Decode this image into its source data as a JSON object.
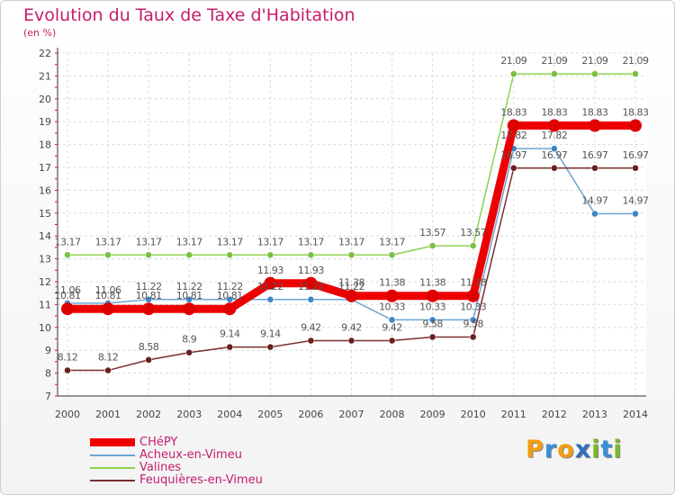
{
  "header": {
    "title": "Evolution du Taux de Taxe d'Habitation",
    "subtitle": "(en %)"
  },
  "logo": {
    "text": "Proxiti",
    "letters": [
      {
        "ch": "P",
        "color": "#f39c12"
      },
      {
        "ch": "r",
        "color": "#3a8fd6"
      },
      {
        "ch": "o",
        "color": "#f39c12"
      },
      {
        "ch": "x",
        "color": "#2f6fbf"
      },
      {
        "ch": "i",
        "color": "#7ab829"
      },
      {
        "ch": "t",
        "color": "#3a8fd6"
      },
      {
        "ch": "i",
        "color": "#7ab829"
      }
    ]
  },
  "chart_data": {
    "type": "line",
    "title": "Evolution du Taux de Taxe d'Habitation",
    "ylabel": "(en %)",
    "xlabel": "",
    "ylim": [
      7,
      22
    ],
    "yticks": [
      7,
      8,
      9,
      10,
      11,
      12,
      13,
      14,
      15,
      16,
      17,
      18,
      19,
      20,
      21,
      22
    ],
    "grid": true,
    "legend_placement": "bottom-left",
    "x": [
      "2000",
      "2001",
      "2002",
      "2003",
      "2004",
      "2005",
      "2006",
      "2007",
      "2008",
      "2009",
      "2010",
      "2011",
      "2012",
      "2013",
      "2014"
    ],
    "series": [
      {
        "name": "Valines",
        "color": "#8fd14f",
        "marker": "#7ac043",
        "width": 1.5,
        "values": [
          13.17,
          13.17,
          13.17,
          13.17,
          13.17,
          13.17,
          13.17,
          13.17,
          13.17,
          13.57,
          13.57,
          21.09,
          21.09,
          21.09,
          21.09
        ],
        "labels": [
          "13.17",
          "13.17",
          "13.17",
          "13.17",
          "13.17",
          "13.17",
          "13.17",
          "13.17",
          "13.17",
          "13.57",
          "13.57",
          "21.09",
          "21.09",
          "21.09",
          "21.09"
        ]
      },
      {
        "name": "Acheux-en-Vimeu",
        "color": "#6aa6d6",
        "marker": "#3f86c7",
        "width": 1.5,
        "values": [
          11.06,
          11.06,
          11.22,
          11.22,
          11.22,
          11.22,
          11.22,
          11.22,
          10.33,
          10.33,
          10.33,
          17.82,
          17.82,
          14.97,
          14.97
        ],
        "labels": [
          "11.06",
          "11.06",
          "11.22",
          "11.22",
          "11.22",
          "11.22",
          "11.22",
          "11.22",
          "10.33",
          "10.33",
          "10.33",
          "17.82",
          "17.82",
          "14.97",
          "14.97"
        ]
      },
      {
        "name": "Feuquières-en-Vimeu",
        "color": "#7a2f2f",
        "marker": "#6b1f1f",
        "width": 1.5,
        "values": [
          8.12,
          8.12,
          8.58,
          8.9,
          9.14,
          9.14,
          9.42,
          9.42,
          9.42,
          9.58,
          9.58,
          16.97,
          16.97,
          16.97,
          16.97
        ],
        "labels": [
          "8.12",
          "8.12",
          "8.58",
          "8.9",
          "9.14",
          "9.14",
          "9.42",
          "9.42",
          "9.42",
          "9.58",
          "9.58",
          "16.97",
          "16.97",
          "16.97",
          "16.97"
        ]
      },
      {
        "name": "CHéPY",
        "color": "#ee0000",
        "marker": "#e00000",
        "width": 9,
        "values": [
          10.81,
          10.81,
          10.81,
          10.81,
          10.81,
          11.93,
          11.93,
          11.38,
          11.38,
          11.38,
          11.38,
          18.83,
          18.83,
          18.83,
          18.83
        ],
        "labels": [
          "10.81",
          "10.81",
          "10.81",
          "10.81",
          "10.81",
          "11.93",
          "11.93",
          "11.38",
          "11.38",
          "11.38",
          "11.38",
          "18.83",
          "18.83",
          "18.83",
          "18.83"
        ]
      }
    ],
    "legend": [
      {
        "name": "CHéPY",
        "color": "#ee0000",
        "thick": true
      },
      {
        "name": "Acheux-en-Vimeu",
        "color": "#6aa6d6",
        "thick": false
      },
      {
        "name": "Valines",
        "color": "#8fd14f",
        "thick": false
      },
      {
        "name": "Feuquières-en-Vimeu",
        "color": "#7a2f2f",
        "thick": false
      }
    ]
  }
}
